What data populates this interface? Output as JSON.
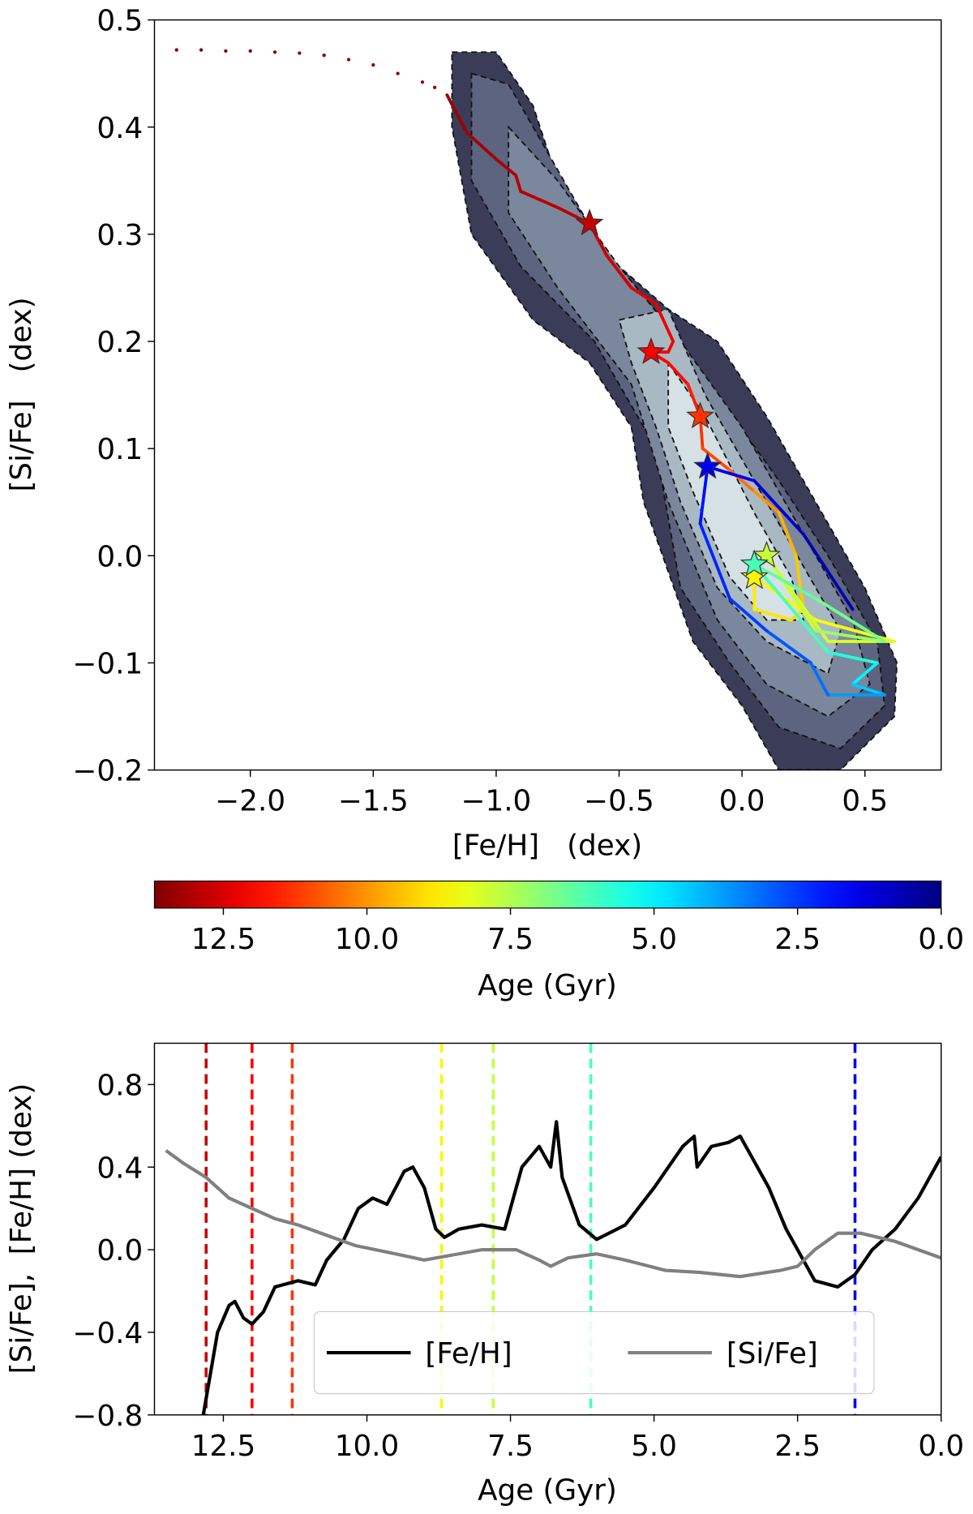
{
  "chart_data": [
    {
      "type": "contour-track",
      "xlabel": "[Fe/H]   (dex)",
      "ylabel": "[Si/Fe]   (dex)",
      "xlim": [
        -2.39,
        0.81
      ],
      "ylim": [
        -0.2,
        0.5
      ],
      "xticks": [
        {
          "value": -2.0,
          "label": "−2.0"
        },
        {
          "value": -1.5,
          "label": "−1.5"
        },
        {
          "value": -1.0,
          "label": "−1.0"
        },
        {
          "value": -0.5,
          "label": "−0.5"
        },
        {
          "value": 0.0,
          "label": "0.0"
        },
        {
          "value": 0.5,
          "label": "0.5"
        }
      ],
      "yticks": [
        {
          "value": -0.2,
          "label": "−0.2"
        },
        {
          "value": -0.1,
          "label": "−0.1"
        },
        {
          "value": 0.0,
          "label": "0.0"
        },
        {
          "value": 0.1,
          "label": "0.1"
        },
        {
          "value": 0.2,
          "label": "0.2"
        },
        {
          "value": 0.3,
          "label": "0.3"
        },
        {
          "value": 0.4,
          "label": "0.4"
        },
        {
          "value": 0.5,
          "label": "0.5"
        }
      ],
      "contours": [
        {
          "color": "#3b3c58",
          "x": [
            -1.18,
            -1.0,
            -0.85,
            -0.75,
            -0.55,
            -0.3,
            -0.1,
            0.1,
            0.3,
            0.5,
            0.63,
            0.62,
            0.4,
            0.15,
            0.0,
            -0.2,
            -0.4,
            -0.45,
            -0.62,
            -0.85,
            -1.1,
            -1.18
          ],
          "y": [
            0.47,
            0.47,
            0.42,
            0.35,
            0.28,
            0.23,
            0.2,
            0.13,
            0.05,
            -0.03,
            -0.1,
            -0.15,
            -0.2,
            -0.2,
            -0.14,
            -0.08,
            0.05,
            0.12,
            0.18,
            0.22,
            0.3,
            0.4
          ]
        },
        {
          "color": "#5c6480",
          "x": [
            -1.1,
            -0.95,
            -0.8,
            -0.6,
            -0.35,
            -0.1,
            0.15,
            0.35,
            0.55,
            0.58,
            0.4,
            0.15,
            -0.05,
            -0.25,
            -0.35,
            -0.6,
            -0.9,
            -1.1
          ],
          "y": [
            0.45,
            0.44,
            0.38,
            0.3,
            0.22,
            0.15,
            0.07,
            0.0,
            -0.08,
            -0.14,
            -0.18,
            -0.16,
            -0.1,
            -0.03,
            0.1,
            0.2,
            0.27,
            0.35
          ]
        },
        {
          "color": "#7b879c",
          "x": [
            -0.95,
            -0.75,
            -0.5,
            -0.25,
            0.0,
            0.25,
            0.45,
            0.52,
            0.35,
            0.1,
            -0.1,
            -0.3,
            -0.45,
            -0.75,
            -0.95
          ],
          "y": [
            0.4,
            0.35,
            0.27,
            0.2,
            0.12,
            0.02,
            -0.06,
            -0.12,
            -0.15,
            -0.12,
            -0.06,
            0.05,
            0.16,
            0.25,
            0.32
          ]
        },
        {
          "color": "#a8b9c4",
          "x": [
            -0.5,
            -0.3,
            -0.15,
            0.05,
            0.25,
            0.4,
            0.35,
            0.1,
            -0.1,
            -0.25,
            -0.35,
            -0.45
          ],
          "y": [
            0.22,
            0.23,
            0.15,
            0.07,
            -0.01,
            -0.07,
            -0.11,
            -0.08,
            -0.03,
            0.05,
            0.12,
            0.18
          ]
        },
        {
          "color": "#d5e1e5",
          "x": [
            -0.3,
            -0.15,
            0.05,
            0.2,
            0.25,
            0.1,
            -0.05,
            -0.2,
            -0.3
          ],
          "y": [
            0.18,
            0.13,
            0.04,
            -0.02,
            -0.06,
            -0.06,
            -0.02,
            0.06,
            0.12
          ]
        }
      ],
      "dotted_track": {
        "x": [
          -2.3,
          -2.2,
          -2.1,
          -2.0,
          -1.9,
          -1.8,
          -1.7,
          -1.6,
          -1.5,
          -1.4,
          -1.3,
          -1.25
        ],
        "y": [
          0.472,
          0.472,
          0.471,
          0.471,
          0.47,
          0.469,
          0.467,
          0.463,
          0.458,
          0.45,
          0.442,
          0.437
        ],
        "age": [
          13.7,
          13.68,
          13.66,
          13.64,
          13.62,
          13.6,
          13.57,
          13.53,
          13.48,
          13.42,
          13.37,
          13.34
        ]
      },
      "track": {
        "x": [
          -1.2,
          -1.12,
          -1.0,
          -0.92,
          -0.9,
          -0.75,
          -0.62,
          -0.55,
          -0.45,
          -0.35,
          -0.28,
          -0.3,
          -0.37,
          -0.3,
          -0.22,
          -0.17,
          -0.16,
          -0.05,
          0.05,
          0.15,
          0.22,
          0.25,
          0.2,
          0.05,
          0.05,
          0.3,
          0.62,
          0.35,
          0.1,
          0.3,
          0.58,
          0.3,
          0.05,
          0.35,
          0.55,
          0.45,
          0.58,
          0.35,
          0.28,
          0.1,
          -0.05,
          -0.17,
          -0.14,
          0.05,
          0.25,
          0.45
        ],
        "y": [
          0.43,
          0.395,
          0.37,
          0.355,
          0.34,
          0.325,
          0.31,
          0.28,
          0.25,
          0.235,
          0.2,
          0.19,
          0.19,
          0.18,
          0.16,
          0.13,
          0.1,
          0.08,
          0.06,
          0.04,
          0.0,
          -0.05,
          -0.06,
          -0.05,
          -0.02,
          -0.06,
          -0.08,
          -0.08,
          0.0,
          -0.07,
          -0.08,
          -0.04,
          -0.008,
          -0.09,
          -0.1,
          -0.12,
          -0.13,
          -0.13,
          -0.1,
          -0.07,
          -0.04,
          0.03,
          0.083,
          0.07,
          0.02,
          -0.05
        ],
        "age": [
          13.3,
          13.2,
          13.1,
          13.0,
          12.95,
          12.9,
          12.8,
          12.6,
          12.4,
          12.25,
          12.1,
          12.05,
          12.0,
          11.85,
          11.6,
          11.3,
          11.0,
          10.5,
          10.0,
          9.6,
          9.3,
          9.0,
          8.9,
          8.8,
          8.7,
          8.4,
          8.1,
          7.95,
          7.8,
          7.2,
          6.7,
          6.4,
          6.1,
          5.6,
          5.0,
          4.4,
          3.8,
          3.2,
          2.9,
          2.5,
          2.2,
          1.9,
          1.5,
          1.0,
          0.6,
          0.0
        ]
      },
      "stars": {
        "x": [
          -0.62,
          -0.37,
          -0.17,
          0.05,
          0.1,
          0.05,
          -0.14
        ],
        "y": [
          0.31,
          0.19,
          0.13,
          -0.02,
          0.0,
          -0.008,
          0.083
        ],
        "age": [
          12.8,
          12.0,
          11.3,
          8.7,
          7.8,
          6.1,
          1.5
        ]
      },
      "colorbar": {
        "label": "Age (Gyr)",
        "colormap": "jet",
        "lim": [
          13.7,
          0.0
        ],
        "ticks": [
          {
            "value": 12.5,
            "label": "12.5"
          },
          {
            "value": 10.0,
            "label": "10.0"
          },
          {
            "value": 7.5,
            "label": "7.5"
          },
          {
            "value": 5.0,
            "label": "5.0"
          },
          {
            "value": 2.5,
            "label": "2.5"
          },
          {
            "value": 0.0,
            "label": "0.0"
          }
        ]
      }
    },
    {
      "type": "line",
      "xlabel": "Age (Gyr)",
      "ylabel": "[Si/Fe],  [Fe/H] (dex)",
      "xlim": [
        13.7,
        0.0
      ],
      "ylim": [
        -0.8,
        1.0
      ],
      "xticks": [
        {
          "value": 12.5,
          "label": "12.5"
        },
        {
          "value": 10.0,
          "label": "10.0"
        },
        {
          "value": 7.5,
          "label": "7.5"
        },
        {
          "value": 5.0,
          "label": "5.0"
        },
        {
          "value": 2.5,
          "label": "2.5"
        },
        {
          "value": 0.0,
          "label": "0.0"
        }
      ],
      "yticks": [
        {
          "value": -0.8,
          "label": "−0.8"
        },
        {
          "value": -0.4,
          "label": "−0.4"
        },
        {
          "value": 0.0,
          "label": "0.0"
        },
        {
          "value": 0.4,
          "label": "0.4"
        },
        {
          "value": 0.8,
          "label": "0.8"
        }
      ],
      "legend": "lower center",
      "series": [
        {
          "name": "[Fe/H]",
          "color": "#000000",
          "x": [
            12.85,
            12.6,
            12.4,
            12.3,
            12.15,
            12.0,
            11.8,
            11.6,
            11.2,
            10.9,
            10.7,
            10.4,
            10.15,
            9.9,
            9.65,
            9.5,
            9.35,
            9.2,
            9.0,
            8.8,
            8.65,
            8.4,
            8.0,
            7.6,
            7.3,
            7.0,
            6.8,
            6.7,
            6.6,
            6.3,
            6.0,
            5.5,
            5.0,
            4.5,
            4.3,
            4.25,
            4.0,
            3.7,
            3.5,
            3.3,
            3.0,
            2.7,
            2.5,
            2.2,
            1.8,
            1.5,
            1.2,
            0.8,
            0.4,
            0.0
          ],
          "values": [
            -0.8,
            -0.4,
            -0.27,
            -0.25,
            -0.33,
            -0.36,
            -0.3,
            -0.18,
            -0.15,
            -0.17,
            -0.05,
            0.05,
            0.2,
            0.25,
            0.22,
            0.3,
            0.38,
            0.4,
            0.3,
            0.1,
            0.06,
            0.1,
            0.12,
            0.1,
            0.4,
            0.5,
            0.4,
            0.62,
            0.35,
            0.12,
            0.05,
            0.12,
            0.3,
            0.5,
            0.55,
            0.4,
            0.5,
            0.52,
            0.55,
            0.45,
            0.3,
            0.1,
            0.0,
            -0.15,
            -0.18,
            -0.12,
            0.0,
            0.1,
            0.25,
            0.45
          ]
        },
        {
          "name": "[Si/Fe]",
          "color": "#808080",
          "x": [
            13.5,
            13.2,
            12.8,
            12.4,
            12.0,
            11.6,
            11.2,
            10.8,
            10.2,
            9.5,
            9.0,
            8.6,
            8.0,
            7.4,
            7.0,
            6.8,
            6.5,
            6.0,
            5.5,
            4.8,
            4.2,
            3.5,
            2.8,
            2.5,
            2.2,
            1.8,
            1.4,
            0.8,
            0.0
          ],
          "values": [
            0.48,
            0.42,
            0.35,
            0.25,
            0.2,
            0.15,
            0.12,
            0.08,
            0.02,
            -0.02,
            -0.05,
            -0.03,
            0.0,
            0.0,
            -0.05,
            -0.08,
            -0.04,
            -0.02,
            -0.05,
            -0.1,
            -0.11,
            -0.13,
            -0.1,
            -0.08,
            0.0,
            0.08,
            0.08,
            0.04,
            -0.04
          ]
        }
      ]
    }
  ]
}
